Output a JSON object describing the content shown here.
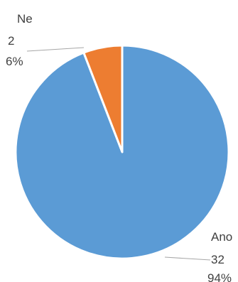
{
  "chart_data": {
    "type": "pie",
    "title": "",
    "legend": "none",
    "slices": [
      {
        "name": "Ano",
        "value": 32,
        "percent": "94%",
        "color": "#5b9bd5"
      },
      {
        "name": "Ne",
        "value": 2,
        "percent": "6%",
        "color": "#ed7d31"
      }
    ]
  }
}
